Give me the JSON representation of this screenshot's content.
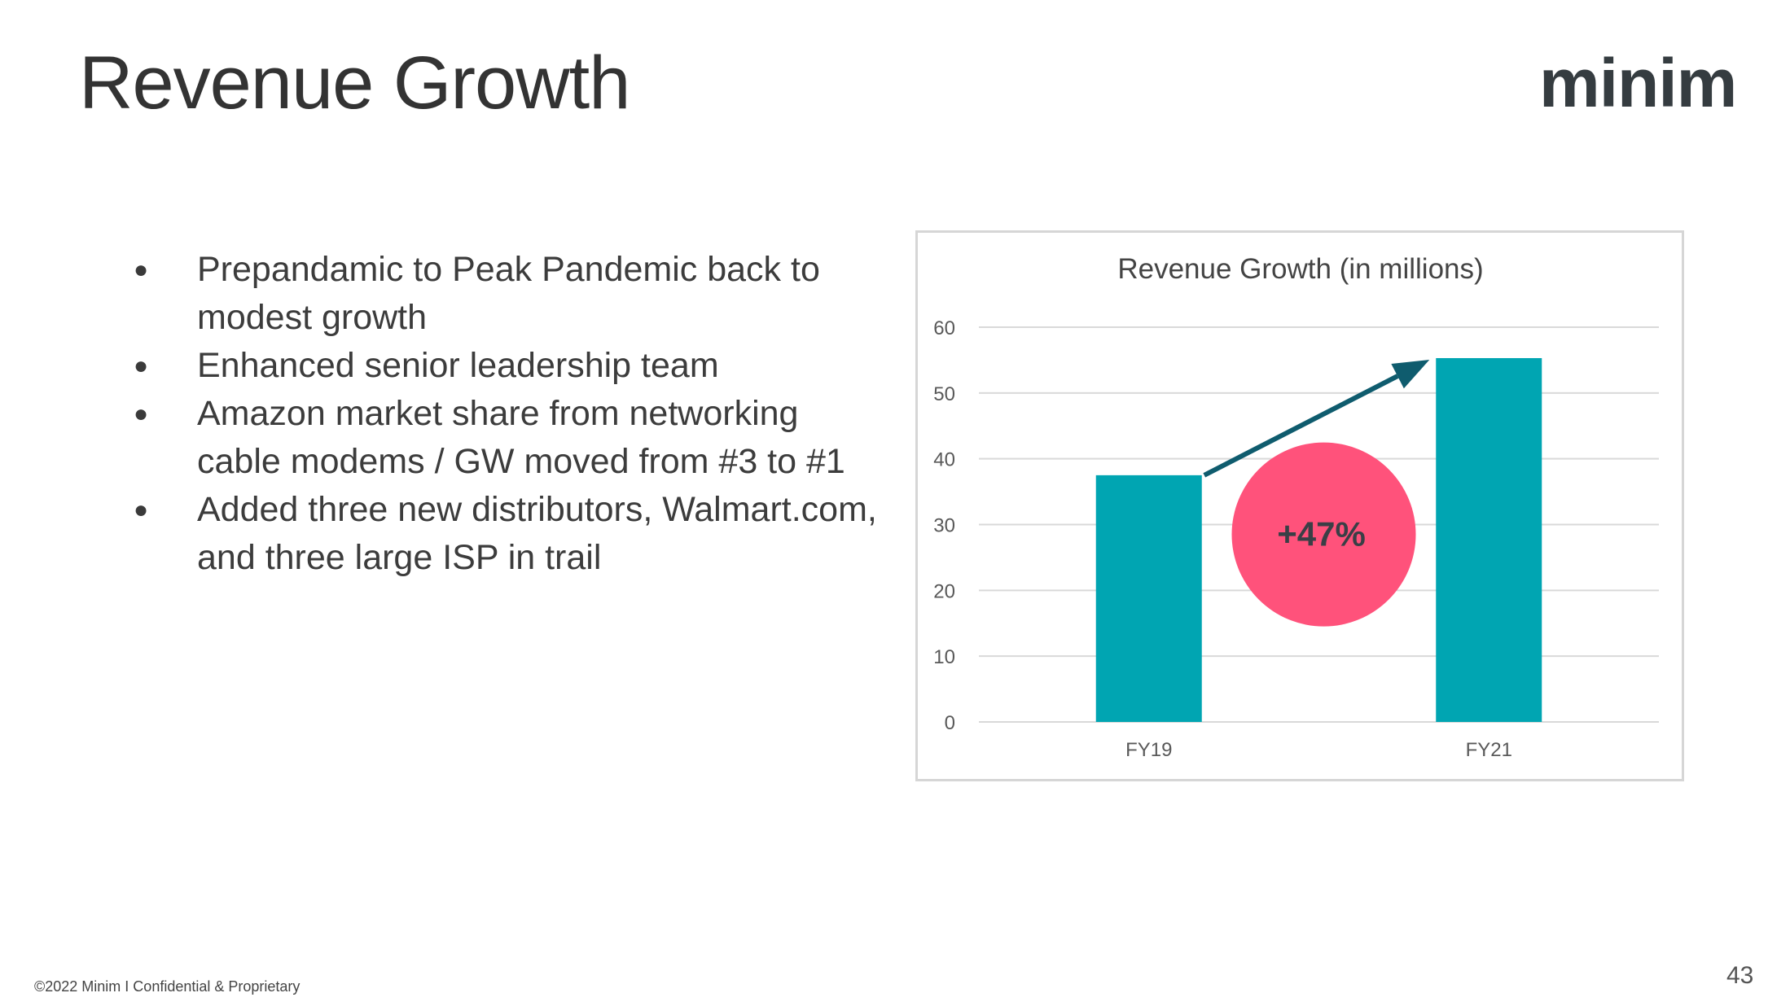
{
  "slide": {
    "title": "Revenue Growth",
    "logo_text": "minim",
    "footer": "©2022 Minim I Confidential & Proprietary",
    "page_number": "43"
  },
  "bullets": [
    "Prepandamic to Peak Pandemic back to modest growth",
    "Enhanced senior leadership team",
    "Amazon market share from networking cable modems / GW moved from #3 to #1",
    "Added three new distributors, Walmart.com, and three large ISP in trail"
  ],
  "bullet_glyph": "●",
  "chart_data": {
    "type": "bar",
    "title": "Revenue Growth (in millions)",
    "categories": [
      "FY19",
      "FY21"
    ],
    "series": [
      {
        "values": [
          37.5,
          55.3
        ]
      }
    ],
    "yticks": [
      0,
      10,
      20,
      30,
      40,
      50,
      60
    ],
    "ylim": [
      0,
      60
    ],
    "grid": true,
    "bar_color": "#00a5b2",
    "annotation": {
      "label": "+47%",
      "color": "#ff527b",
      "arrow_color": "#0f5c6e",
      "text_color": "#3a3f46"
    }
  }
}
